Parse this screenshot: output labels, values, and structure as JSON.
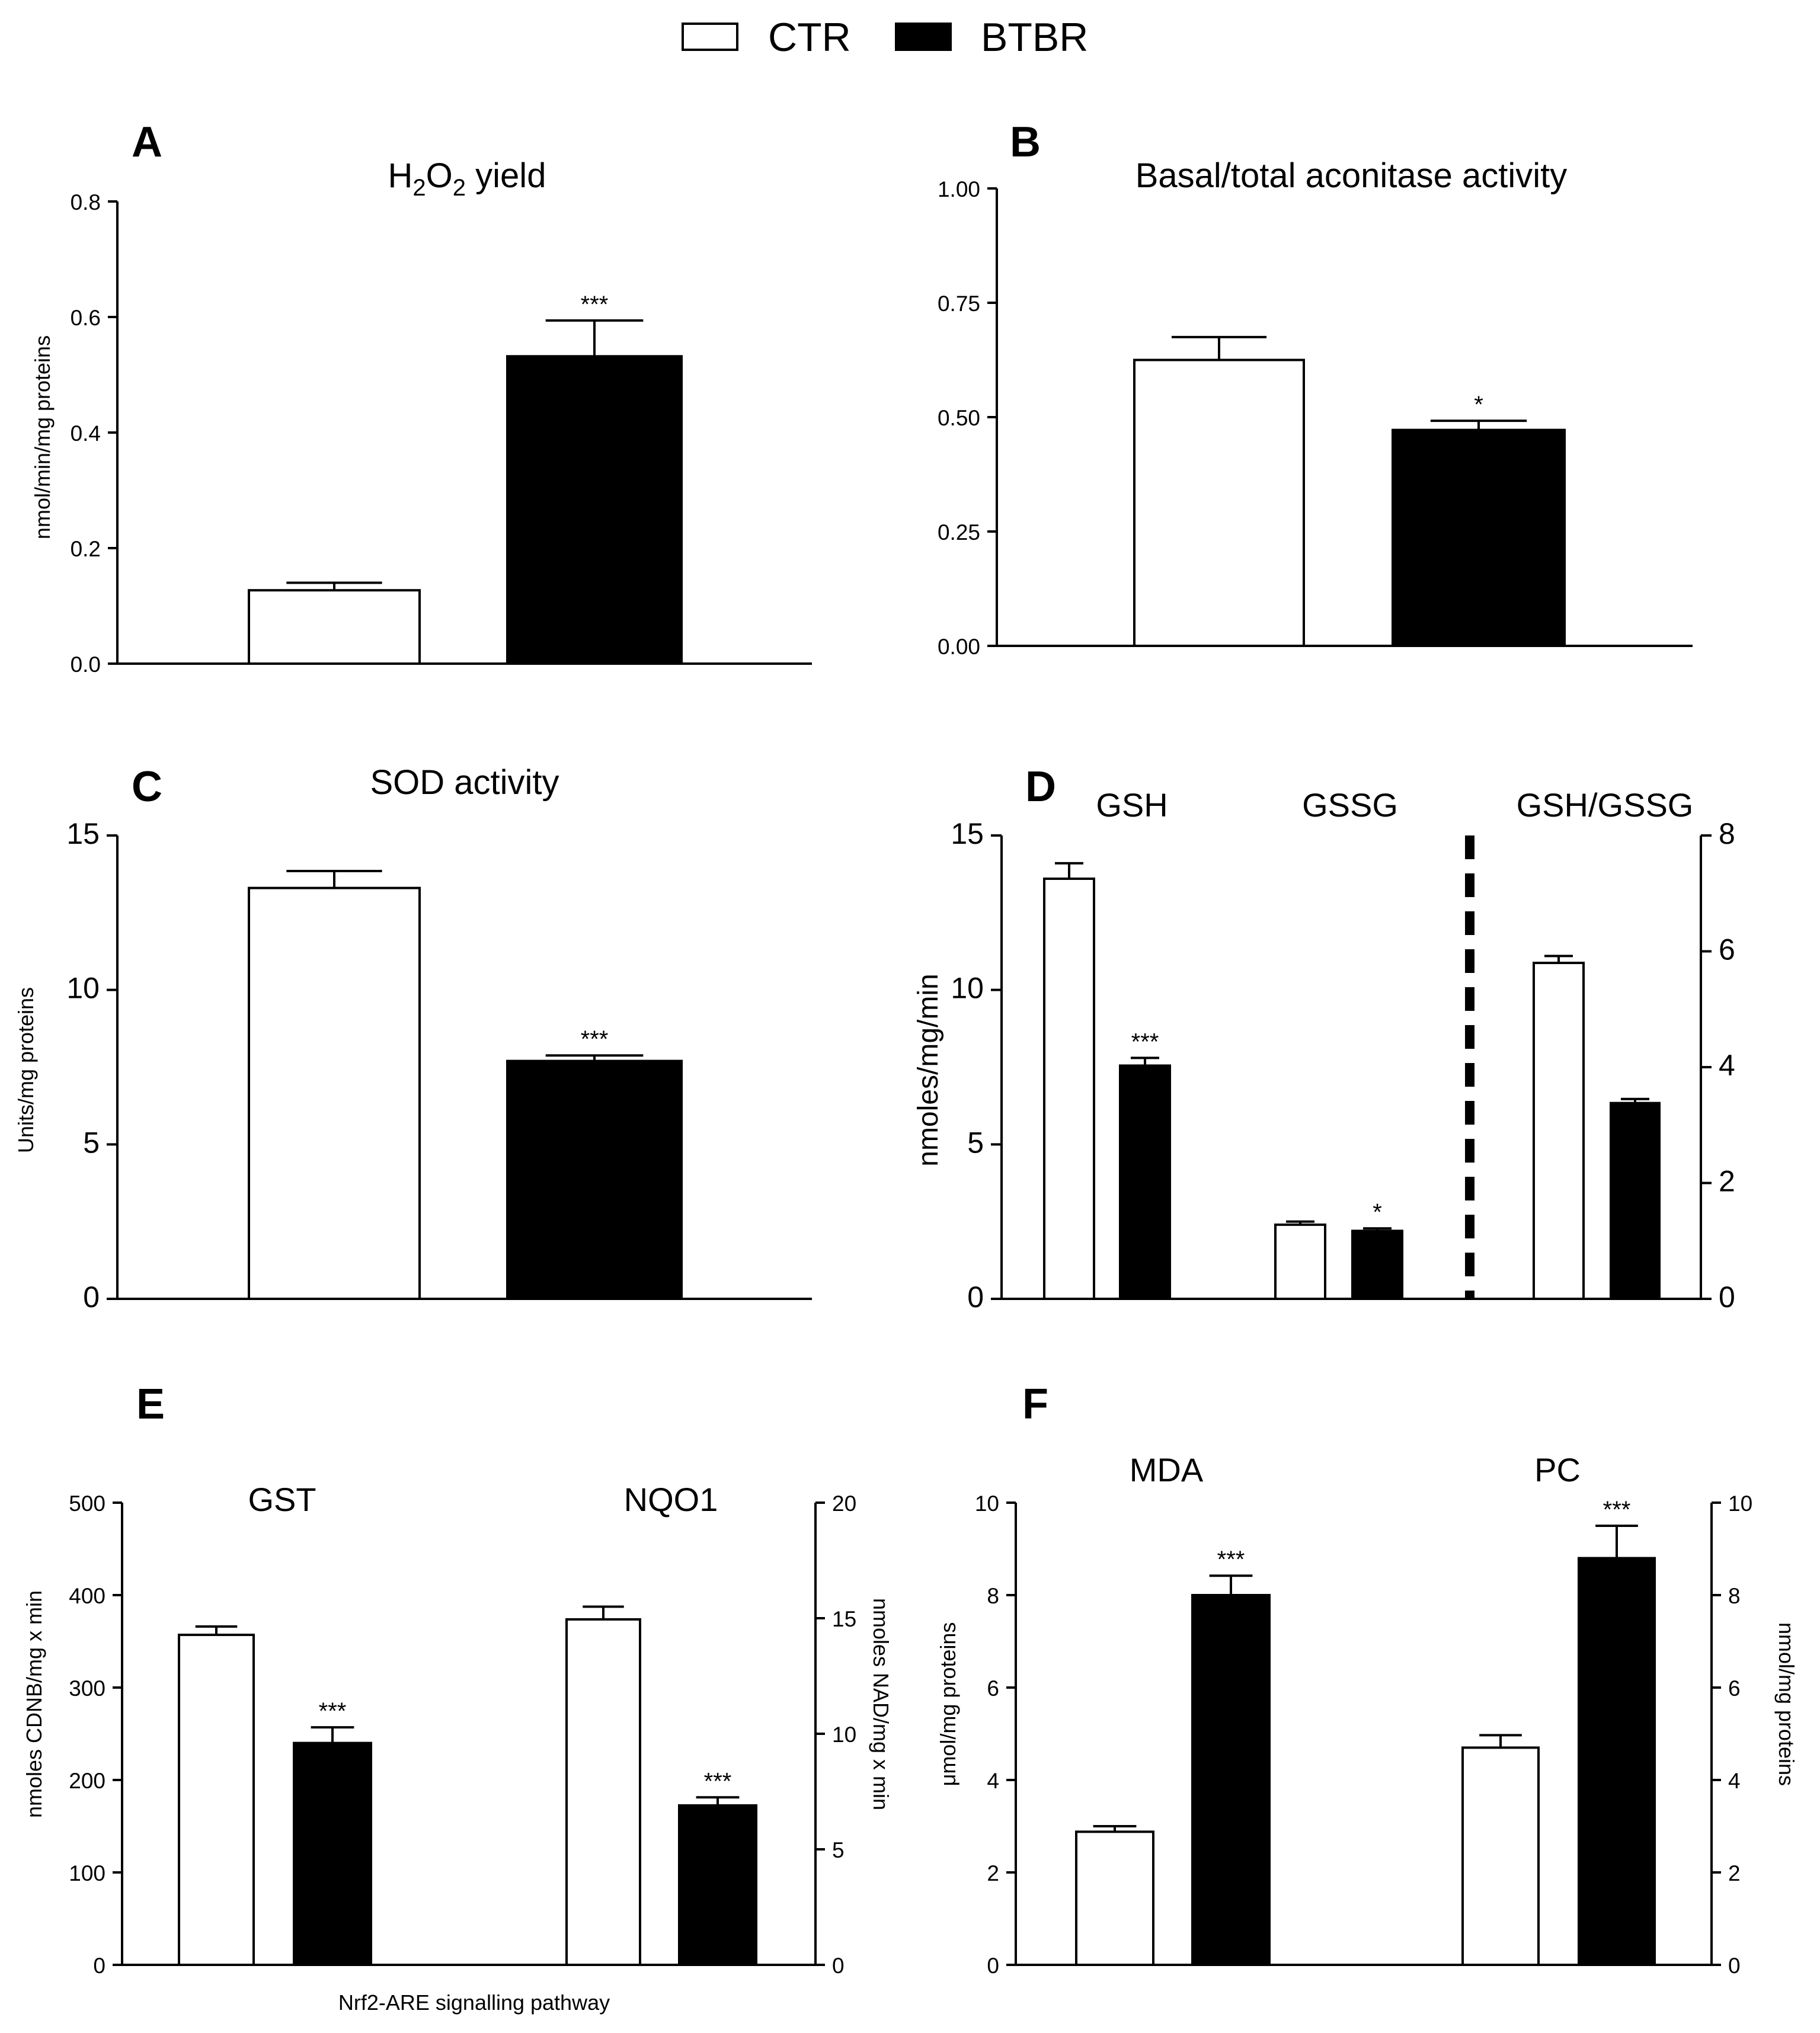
{
  "legend": {
    "items": [
      {
        "name": "CTR",
        "color": "#ffffff"
      },
      {
        "name": "BTBR",
        "color": "#000000"
      }
    ]
  },
  "colors": {
    "ctr": "#ffffff",
    "btbr": "#000000",
    "axis": "#000000"
  },
  "chart_data": [
    {
      "panel": "A",
      "type": "bar",
      "title": "H2O2 yield",
      "ylabel": "nmol/min/mg proteins",
      "xlabel": "",
      "ylim": [
        0,
        0.8
      ],
      "yticks": [
        "0.0",
        "0.2",
        "0.4",
        "0.6",
        "0.8"
      ],
      "series": [
        {
          "name": "CTR",
          "values": [
            0.127
          ],
          "errors": [
            0.013
          ]
        },
        {
          "name": "BTBR",
          "values": [
            0.532
          ],
          "errors": [
            0.062
          ],
          "sig": [
            "***"
          ]
        }
      ]
    },
    {
      "panel": "B",
      "type": "bar",
      "title": "Basal/total aconitase activity",
      "ylabel": "",
      "xlabel": "",
      "ylim": [
        0,
        1.0
      ],
      "yticks": [
        "0.00",
        "0.25",
        "0.50",
        "0.75",
        "1.00"
      ],
      "series": [
        {
          "name": "CTR",
          "values": [
            0.625
          ],
          "errors": [
            0.05
          ]
        },
        {
          "name": "BTBR",
          "values": [
            0.472
          ],
          "errors": [
            0.02
          ],
          "sig": [
            "*"
          ]
        }
      ]
    },
    {
      "panel": "C",
      "type": "bar",
      "title": "SOD activity",
      "ylabel": "Units/mg proteins",
      "xlabel": "",
      "ylim": [
        0,
        15
      ],
      "yticks": [
        "0",
        "5",
        "10",
        "15"
      ],
      "series": [
        {
          "name": "CTR",
          "values": [
            13.3
          ],
          "errors": [
            0.55
          ]
        },
        {
          "name": "BTBR",
          "values": [
            7.7
          ],
          "errors": [
            0.18
          ],
          "sig": [
            "***"
          ]
        }
      ]
    },
    {
      "panel": "D",
      "type": "bar",
      "categories": [
        "GSH",
        "GSSG",
        "GSH/GSSG"
      ],
      "ylabel": "nmoles/mg/min",
      "xlabel": "",
      "ylim": [
        0,
        15
      ],
      "yticks": [
        "0",
        "5",
        "10",
        "15"
      ],
      "y2lim": [
        0,
        8
      ],
      "y2ticks": [
        "0",
        "2",
        "4",
        "6",
        "8"
      ],
      "series": [
        {
          "name": "CTR",
          "values": [
            13.6,
            2.4,
            5.8
          ],
          "errors": [
            0.5,
            0.1,
            0.12
          ],
          "axis": [
            "left",
            "left",
            "right"
          ]
        },
        {
          "name": "BTBR",
          "values": [
            7.55,
            2.2,
            3.38
          ],
          "errors": [
            0.25,
            0.08,
            0.07
          ],
          "axis": [
            "left",
            "left",
            "right"
          ],
          "sig": [
            "***",
            "*",
            ""
          ]
        }
      ]
    },
    {
      "panel": "E",
      "type": "bar",
      "categories": [
        "GST",
        "NQO1"
      ],
      "ylabel": "nmoles CDNB/mg x min",
      "y2label": "nmoles NAD/mg x min",
      "xlabel": "Nrf2-ARE signalling pathway",
      "ylim": [
        0,
        500
      ],
      "yticks": [
        "0",
        "100",
        "200",
        "300",
        "400",
        "500"
      ],
      "y2lim": [
        0,
        20
      ],
      "y2ticks": [
        "0",
        "5",
        "10",
        "15",
        "20"
      ],
      "series": [
        {
          "name": "CTR",
          "values": [
            357,
            14.95
          ],
          "errors": [
            9,
            0.55
          ],
          "axis": [
            "left",
            "right"
          ]
        },
        {
          "name": "BTBR",
          "values": [
            240,
            6.9
          ],
          "errors": [
            17,
            0.35
          ],
          "axis": [
            "left",
            "right"
          ],
          "sig": [
            "***",
            "***"
          ]
        }
      ]
    },
    {
      "panel": "F",
      "type": "bar",
      "categories": [
        "MDA",
        "PC"
      ],
      "ylabel": "μmol/mg proteins",
      "y2label": "nmol/mg proteins",
      "xlabel": "",
      "ylim": [
        0,
        10
      ],
      "yticks": [
        "0",
        "2",
        "4",
        "6",
        "8",
        "10"
      ],
      "y2lim": [
        0,
        10
      ],
      "y2ticks": [
        "0",
        "2",
        "4",
        "6",
        "8",
        "10"
      ],
      "series": [
        {
          "name": "CTR",
          "values": [
            2.88,
            4.7
          ],
          "errors": [
            0.12,
            0.27
          ],
          "axis": [
            "left",
            "right"
          ]
        },
        {
          "name": "BTBR",
          "values": [
            8.0,
            8.8
          ],
          "errors": [
            0.42,
            0.7
          ],
          "axis": [
            "left",
            "right"
          ],
          "sig": [
            "***",
            "***"
          ]
        }
      ]
    }
  ]
}
